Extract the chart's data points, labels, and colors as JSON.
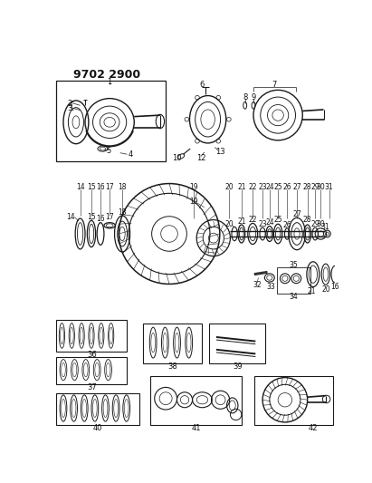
{
  "title": "9702 2900",
  "background_color": "#ffffff",
  "fig_width": 4.11,
  "fig_height": 5.33,
  "dpi": 100,
  "line_color": "#1a1a1a",
  "label_fontsize": 6.0
}
